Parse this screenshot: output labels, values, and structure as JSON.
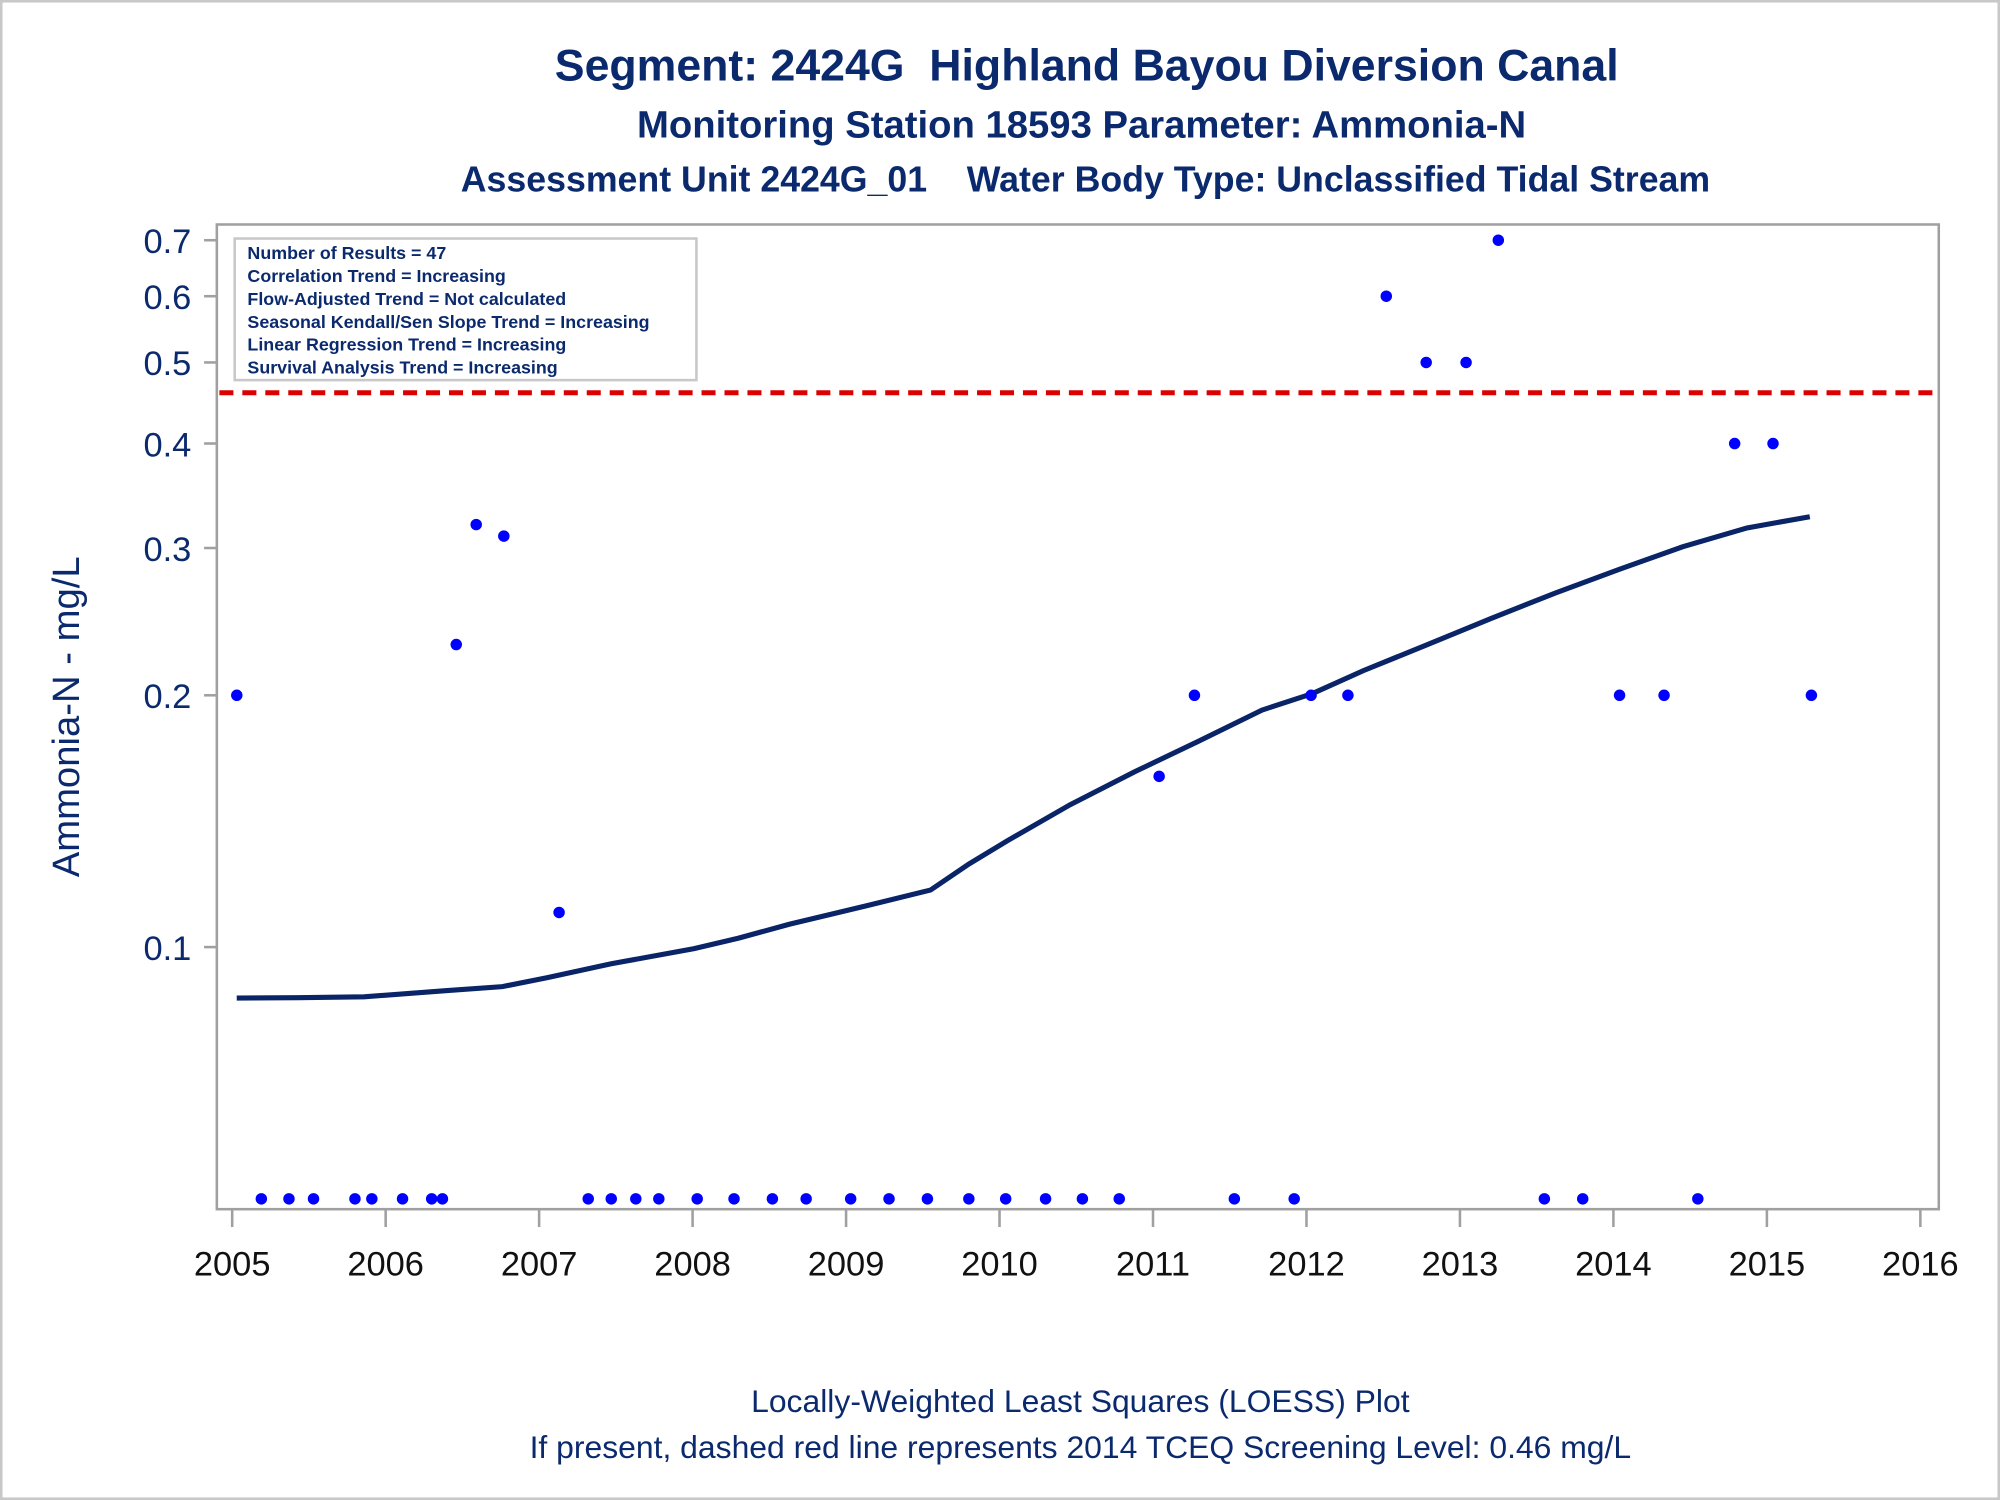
{
  "colors": {
    "title": "#0b2a6e",
    "points": "#0000ff",
    "loess": "#0a2468",
    "screening": "#dd0000",
    "frame": "#a0a0a0"
  },
  "chart_data": {
    "type": "scatter",
    "title": "Segment: 2424G  Highland Bayou Diversion Canal",
    "subtitle1": "Monitoring Station 18593 Parameter: Ammonia-N",
    "subtitle2": "Assessment Unit 2424G_01    Water Body Type: Unclassified Tidal Stream",
    "xlabel": "",
    "ylabel": "Ammonia-N - mg/L",
    "yscale": "log",
    "xlim": [
      2004.9,
      2016.12
    ],
    "ylim": [
      0.0486,
      0.731
    ],
    "xticks": [
      2005,
      2006,
      2007,
      2008,
      2009,
      2010,
      2011,
      2012,
      2013,
      2014,
      2015,
      2016
    ],
    "yticks": [
      0.1,
      0.2,
      0.3,
      0.4,
      0.5,
      0.6,
      0.7
    ],
    "ytick_labels": [
      "0.1",
      "0.2",
      "0.3",
      "0.4",
      "0.5",
      "0.6",
      "0.7"
    ],
    "grid": false,
    "stats_box": {
      "placement": "top-left",
      "lines": [
        "Number of Results = 47",
        "Correlation Trend = Increasing",
        "Flow-Adjusted Trend = Not calculated",
        "Seasonal Kendall/Sen Slope Trend = Increasing",
        "Linear Regression Trend = Increasing",
        "Survival Analysis Trend = Increasing"
      ]
    },
    "screening_level": 0.46,
    "points": {
      "name": "Results",
      "x": [
        2005.03,
        2005.19,
        2005.37,
        2005.53,
        2005.8,
        2005.91,
        2006.11,
        2006.3,
        2006.37,
        2006.46,
        2006.59,
        2006.77,
        2007.13,
        2007.32,
        2007.47,
        2007.63,
        2007.78,
        2008.03,
        2008.27,
        2008.52,
        2008.74,
        2009.03,
        2009.28,
        2009.53,
        2009.8,
        2010.04,
        2010.3,
        2010.54,
        2010.78,
        2011.04,
        2011.27,
        2011.53,
        2011.92,
        2012.03,
        2012.27,
        2012.52,
        2012.78,
        2013.04,
        2013.25,
        2013.55,
        2013.8,
        2014.04,
        2014.33,
        2014.55,
        2014.79,
        2015.04,
        2015.29
      ],
      "y": [
        0.2,
        0.05,
        0.05,
        0.05,
        0.05,
        0.05,
        0.05,
        0.05,
        0.05,
        0.23,
        0.32,
        0.31,
        0.11,
        0.05,
        0.05,
        0.05,
        0.05,
        0.05,
        0.05,
        0.05,
        0.05,
        0.05,
        0.05,
        0.05,
        0.05,
        0.05,
        0.05,
        0.05,
        0.05,
        0.16,
        0.2,
        0.05,
        0.05,
        0.2,
        0.2,
        0.6,
        0.5,
        0.5,
        0.7,
        0.05,
        0.05,
        0.2,
        0.2,
        0.05,
        0.4,
        0.4,
        0.2
      ]
    },
    "loess": {
      "name": "LOESS",
      "x": [
        2005.03,
        2005.43,
        2005.86,
        2006.39,
        2006.76,
        2007.05,
        2007.47,
        2008.01,
        2008.3,
        2008.63,
        2009.13,
        2009.55,
        2009.8,
        2010.05,
        2010.46,
        2010.88,
        2011.29,
        2011.71,
        2012.04,
        2012.37,
        2012.79,
        2013.2,
        2013.62,
        2014.04,
        2014.45,
        2014.87,
        2015.28
      ],
      "y": [
        0.0869,
        0.087,
        0.0872,
        0.0887,
        0.0897,
        0.0919,
        0.0955,
        0.0996,
        0.1025,
        0.1065,
        0.112,
        0.117,
        0.1257,
        0.134,
        0.148,
        0.162,
        0.176,
        0.192,
        0.201,
        0.214,
        0.23,
        0.247,
        0.265,
        0.283,
        0.301,
        0.317,
        0.327
      ]
    },
    "footnote1": "Locally-Weighted Least Squares (LOESS) Plot",
    "footnote2": "If present, dashed red line represents 2014 TCEQ Screening Level: 0.46 mg/L"
  }
}
